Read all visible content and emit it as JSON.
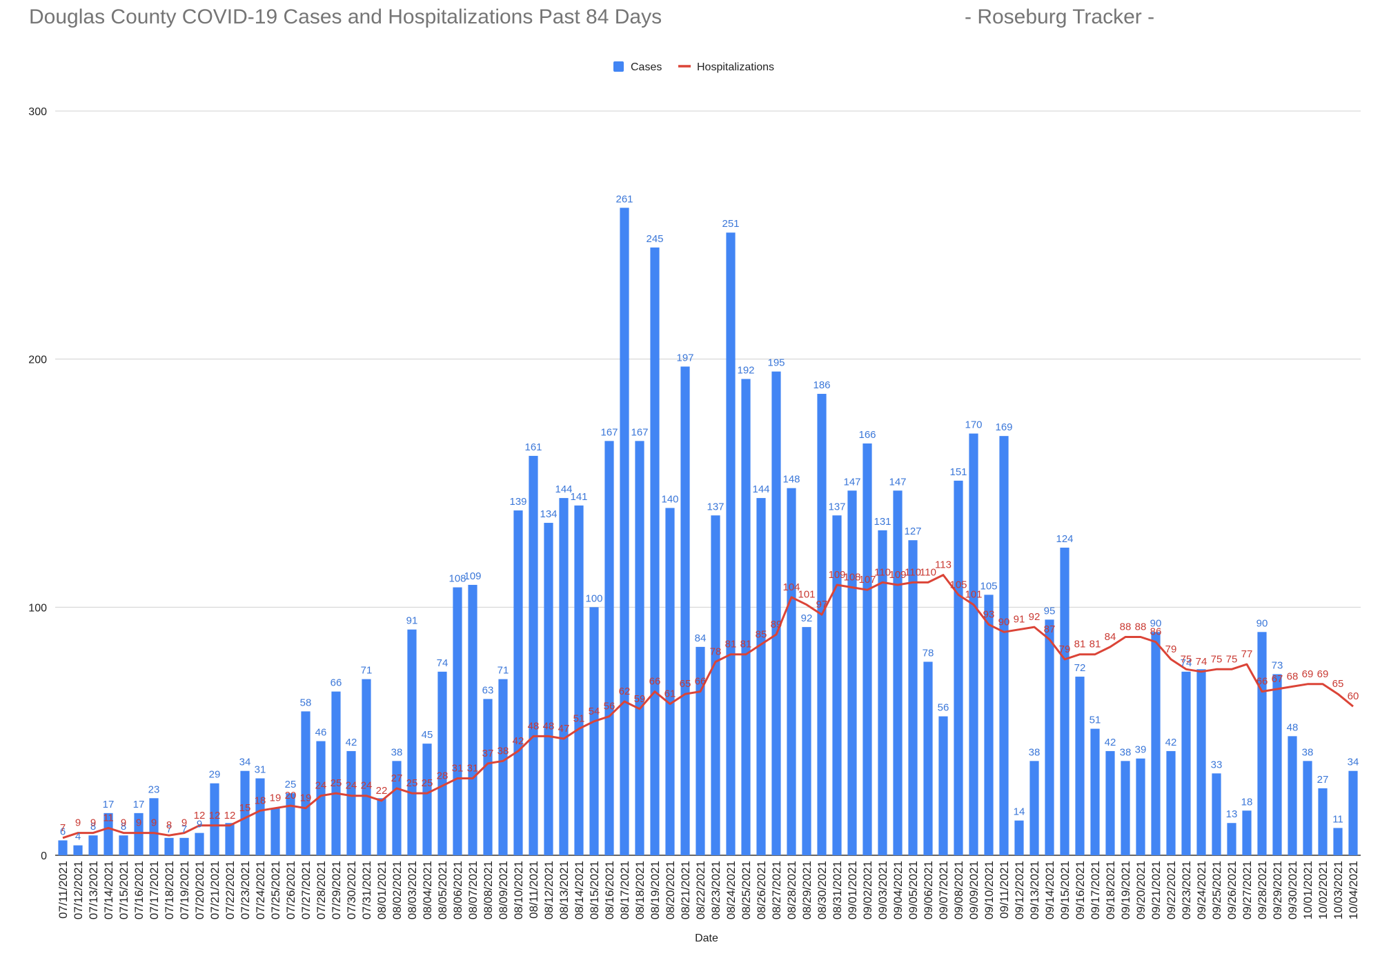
{
  "header": {
    "title": "Douglas County COVID-19 Cases and Hospitalizations Past 84 Days",
    "subtitle": "- Roseburg Tracker -"
  },
  "chart_data": {
    "type": "bar",
    "title": "Douglas County COVID-19 Cases and Hospitalizations Past 84 Days",
    "subtitle": "- Roseburg Tracker -",
    "xlabel": "Date",
    "ylabel": "",
    "ylim": [
      0,
      300
    ],
    "yticks": [
      0,
      100,
      200,
      300
    ],
    "grid": true,
    "legend_position": "top",
    "colors": {
      "cases": "#4285f4",
      "hospitalizations": "#db4437"
    },
    "categories": [
      "07/11/2021",
      "07/12/2021",
      "07/13/2021",
      "07/14/2021",
      "07/15/2021",
      "07/16/2021",
      "07/17/2021",
      "07/18/2021",
      "07/19/2021",
      "07/20/2021",
      "07/21/2021",
      "07/22/2021",
      "07/23/2021",
      "07/24/2021",
      "07/25/2021",
      "07/26/2021",
      "07/27/2021",
      "07/28/2021",
      "07/29/2021",
      "07/30/2021",
      "07/31/2021",
      "08/01/2021",
      "08/02/2021",
      "08/03/2021",
      "08/04/2021",
      "08/05/2021",
      "08/06/2021",
      "08/07/2021",
      "08/08/2021",
      "08/09/2021",
      "08/10/2021",
      "08/11/2021",
      "08/12/2021",
      "08/13/2021",
      "08/14/2021",
      "08/15/2021",
      "08/16/2021",
      "08/17/2021",
      "08/18/2021",
      "08/19/2021",
      "08/20/2021",
      "08/21/2021",
      "08/22/2021",
      "08/23/2021",
      "08/24/2021",
      "08/25/2021",
      "08/26/2021",
      "08/27/2021",
      "08/28/2021",
      "08/29/2021",
      "08/30/2021",
      "08/31/2021",
      "09/01/2021",
      "09/02/2021",
      "09/03/2021",
      "09/04/2021",
      "09/05/2021",
      "09/06/2021",
      "09/07/2021",
      "09/08/2021",
      "09/09/2021",
      "09/10/2021",
      "09/11/2021",
      "09/12/2021",
      "09/13/2021",
      "09/14/2021",
      "09/15/2021",
      "09/16/2021",
      "09/17/2021",
      "09/18/2021",
      "09/19/2021",
      "09/20/2021",
      "09/21/2021",
      "09/22/2021",
      "09/23/2021",
      "09/24/2021",
      "09/25/2021",
      "09/26/2021",
      "09/27/2021",
      "09/28/2021",
      "09/29/2021",
      "09/30/2021",
      "10/01/2021",
      "10/02/2021",
      "10/03/2021",
      "10/04/2021"
    ],
    "series": [
      {
        "name": "Cases",
        "type": "bar",
        "values": [
          6,
          4,
          8,
          17,
          8,
          17,
          23,
          7,
          7,
          9,
          29,
          13,
          34,
          31,
          19,
          25,
          58,
          46,
          66,
          42,
          71,
          23,
          38,
          91,
          45,
          74,
          108,
          109,
          63,
          71,
          139,
          161,
          134,
          144,
          141,
          100,
          167,
          261,
          167,
          245,
          140,
          197,
          84,
          137,
          251,
          192,
          144,
          195,
          148,
          92,
          186,
          137,
          147,
          166,
          131,
          147,
          127,
          78,
          56,
          151,
          170,
          105,
          169,
          14,
          38,
          95,
          124,
          72,
          51,
          42,
          38,
          39,
          90,
          42,
          74,
          75,
          33,
          13,
          18,
          90,
          73,
          48,
          38,
          27,
          11,
          34
        ],
        "labels": [
          "6",
          "4",
          "8",
          "17",
          "8",
          "17",
          "23",
          "7",
          "7",
          "9",
          "29",
          "",
          "34",
          "31",
          "",
          "25",
          "58",
          "46",
          "66",
          "42",
          "71",
          "",
          "38",
          "91",
          "45",
          "74",
          "108",
          "109",
          "63",
          "71",
          "139",
          "161",
          "134",
          "144",
          "141",
          "100",
          "167",
          "261",
          "167",
          "245",
          "140",
          "197",
          "84",
          "137",
          "251",
          "192",
          "144",
          "195",
          "148",
          "92",
          "186",
          "137",
          "147",
          "166",
          "131",
          "147",
          "127",
          "78",
          "56",
          "151",
          "170",
          "105",
          "169",
          "14",
          "38",
          "95",
          "124",
          "72",
          "51",
          "42",
          "38",
          "39",
          "90",
          "42",
          "74",
          "",
          "33",
          "13",
          "18",
          "90",
          "73",
          "48",
          "38",
          "27",
          "11",
          "34"
        ]
      },
      {
        "name": "Hospitalizations",
        "type": "line",
        "values": [
          7,
          9,
          9,
          11,
          9,
          9,
          9,
          8,
          9,
          12,
          12,
          12,
          15,
          18,
          19,
          20,
          19,
          24,
          25,
          24,
          24,
          22,
          27,
          25,
          25,
          28,
          31,
          31,
          37,
          38,
          42,
          48,
          48,
          47,
          51,
          54,
          56,
          62,
          59,
          66,
          61,
          65,
          66,
          78,
          81,
          81,
          85,
          89,
          104,
          101,
          97,
          109,
          108,
          107,
          110,
          109,
          110,
          110,
          113,
          105,
          101,
          93,
          90,
          91,
          92,
          87,
          79,
          81,
          81,
          84,
          88,
          88,
          86,
          79,
          75,
          74,
          75,
          75,
          77,
          66,
          67,
          68,
          69,
          69,
          65,
          60
        ],
        "labels": [
          "7",
          "9",
          "9",
          "11",
          "9",
          "9",
          "9",
          "8",
          "9",
          "12",
          "12",
          "12",
          "15",
          "18",
          "19",
          "20",
          "19",
          "24",
          "25",
          "24",
          "24",
          "22",
          "27",
          "25",
          "25",
          "28",
          "31",
          "31",
          "37",
          "38",
          "42",
          "48",
          "48",
          "47",
          "51",
          "54",
          "56",
          "62",
          "59",
          "66",
          "61",
          "65",
          "66",
          "78",
          "81",
          "81",
          "85",
          "89",
          "104",
          "101",
          "97",
          "109",
          "108",
          "107",
          "110",
          "109",
          "110",
          "110",
          "113",
          "105",
          "101",
          "93",
          "90",
          "91",
          "92",
          "87",
          "79",
          "81",
          "81",
          "84",
          "88",
          "88",
          "86",
          "79",
          "75",
          "74",
          "75",
          "75",
          "77",
          "66",
          "67",
          "68",
          "69",
          "69",
          "65",
          "60"
        ]
      }
    ]
  }
}
